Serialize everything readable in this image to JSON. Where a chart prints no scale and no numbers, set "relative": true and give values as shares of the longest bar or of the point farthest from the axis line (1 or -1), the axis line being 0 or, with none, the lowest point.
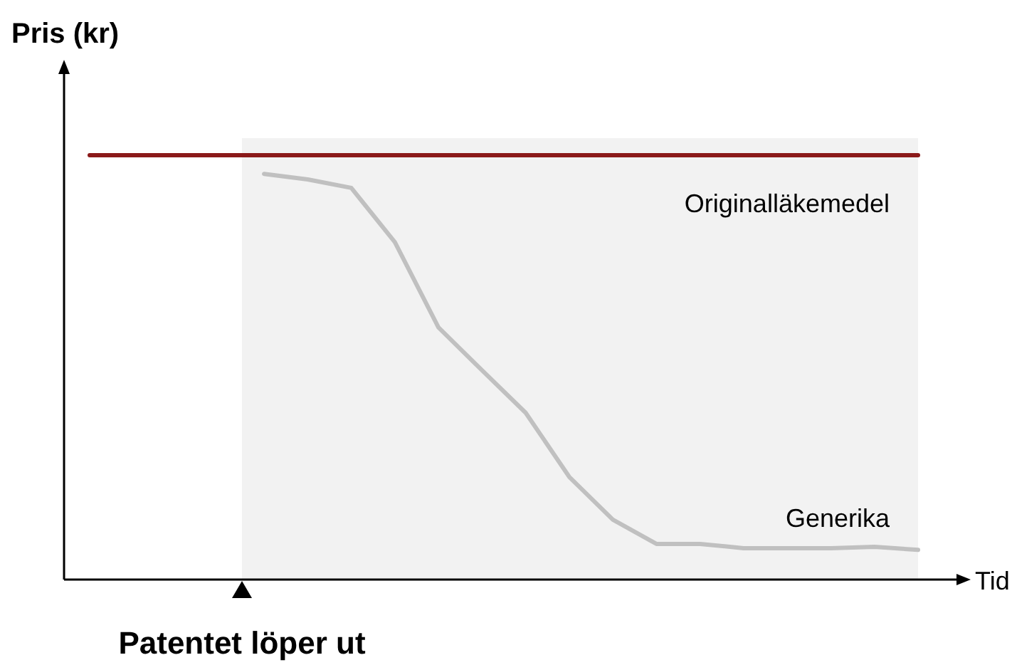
{
  "chart_data": {
    "type": "line",
    "relative": true,
    "ylabel": "Pris (kr)",
    "xlabel": "Tid",
    "categories": [
      null,
      null,
      null,
      null,
      null,
      null,
      null,
      null,
      null,
      null,
      null,
      null,
      null,
      null,
      null,
      null,
      null,
      null,
      null,
      null
    ],
    "series": [
      {
        "name": "Originalläkemedel",
        "color": "#8b1a1a",
        "values": [
          1,
          1,
          1,
          1,
          1,
          1,
          1,
          1,
          1,
          1,
          1,
          1,
          1,
          1,
          1,
          1,
          1,
          1,
          1,
          1
        ]
      },
      {
        "name": "Generika",
        "color": "#c0c0c0",
        "values": [
          null,
          null,
          null,
          null,
          0.956,
          0.943,
          0.923,
          0.795,
          0.594,
          0.493,
          0.393,
          0.242,
          0.141,
          0.084,
          0.084,
          0.074,
          0.074,
          0.074,
          0.077,
          0.07
        ]
      }
    ],
    "annotations": [
      "Patentet löper ut"
    ]
  }
}
